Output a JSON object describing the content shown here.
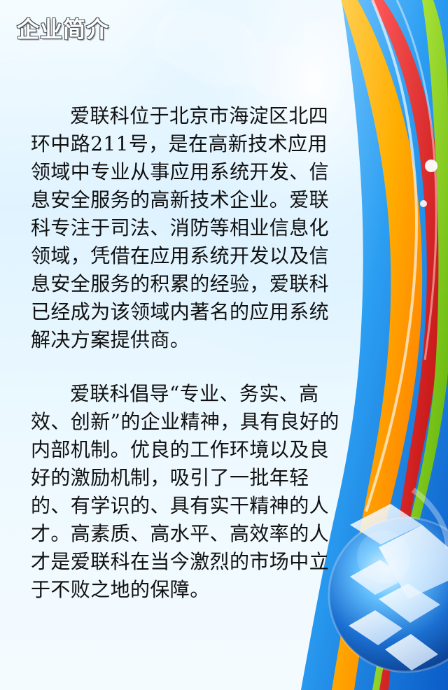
{
  "page": {
    "title": "企业简介"
  },
  "content": {
    "paragraphs": [
      "爱联科位于北京市海淀区北四环中路211号，是在高新技术应用领域中专业从事应用系统开发、信息安全服务的高新技术企业。爱联科专注于司法、消防等相业信息化领域，凭借在应用系统开发以及信息安全服务的积累的经验，爱联科已经成为该领域内著名的应用系统解决方案提供商。",
      "爱联科倡导“专业、务实、高效、创新”的企业精神，具有良好的内部机制。优良的工作环境以及良好的激励机制，吸引了一批年轻的、有学识的、具有实干精神的人才。高素质、高水平、高效率的人才是爱联科在当今激烈的市场中立于不败之地的保障。"
    ]
  },
  "theme": {
    "accent_colors": [
      "#ff7a00",
      "#ffb000",
      "#c40000",
      "#7fd000",
      "#29a8f0",
      "#0d63c8"
    ]
  }
}
